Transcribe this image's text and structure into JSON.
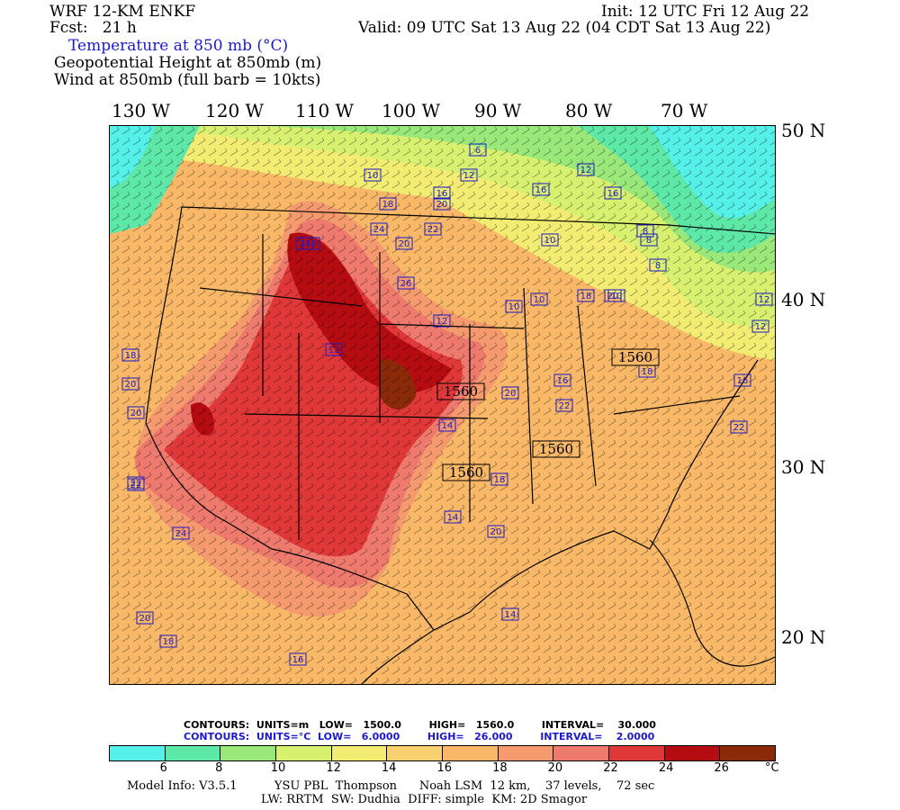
{
  "header": {
    "model": "WRF 12-KM ENKF",
    "fcst": "Fcst:   21 h",
    "init": "Init: 12 UTC Fri 12 Aug 22",
    "valid": "Valid: 09 UTC Sat 13 Aug 22 (04 CDT Sat 13 Aug 22)",
    "field1": "Temperature at 850 mb (°C)",
    "field2": "Geopotential Height at 850mb (m)",
    "field3": "Wind at 850mb (full barb = 10kts)"
  },
  "axes": {
    "lon_labels": [
      "130 W",
      "120 W",
      "110 W",
      "100 W",
      "90 W",
      "80 W",
      "70 W"
    ],
    "lat_labels": [
      "50 N",
      "40 N",
      "30 N",
      "20 N"
    ]
  },
  "contour_labels": {
    "temperature": [
      "6",
      "10",
      "12",
      "12",
      "16",
      "16",
      "18",
      "20",
      "16",
      "16",
      "24",
      "20",
      "22",
      "24",
      "26",
      "12",
      "12",
      "10",
      "10",
      "10",
      "8",
      "8",
      "8",
      "10",
      "12",
      "12",
      "16",
      "18",
      "20",
      "20",
      "22",
      "24",
      "20",
      "18",
      "16",
      "14",
      "14",
      "14",
      "16",
      "22",
      "22",
      "22",
      "20",
      "20",
      "18",
      "18",
      "20",
      "18"
    ],
    "height": [
      "1560",
      "1560",
      "1560",
      "1560"
    ]
  },
  "legend": {
    "contours_height": "CONTOURS:  UNITS=m   LOW=   1500.0        HIGH=   1560.0        INTERVAL=    30.000",
    "contours_temp": "CONTOURS:  UNITS=°C  LOW=   6.0000        HIGH=   26.000        INTERVAL=    2.0000",
    "ticks": [
      "6",
      "8",
      "10",
      "12",
      "14",
      "16",
      "18",
      "20",
      "22",
      "24",
      "26"
    ],
    "unit": "°C",
    "colors": [
      "#55f0e8",
      "#5ee8a8",
      "#9ae87a",
      "#d8f070",
      "#f2ec72",
      "#f8d070",
      "#f8b868",
      "#f59a6e",
      "#ee7a6e",
      "#e03838",
      "#b40c10",
      "#8a2a08"
    ]
  },
  "model_info": {
    "line1": "Model Info: V3.5.1          YSU PBL  Thompson      Noah LSM  12 km,    37 levels,    72 sec",
    "line2": "LW: RRTM  SW: Dudhia  DIFF: simple  KM: 2D Smagor"
  }
}
